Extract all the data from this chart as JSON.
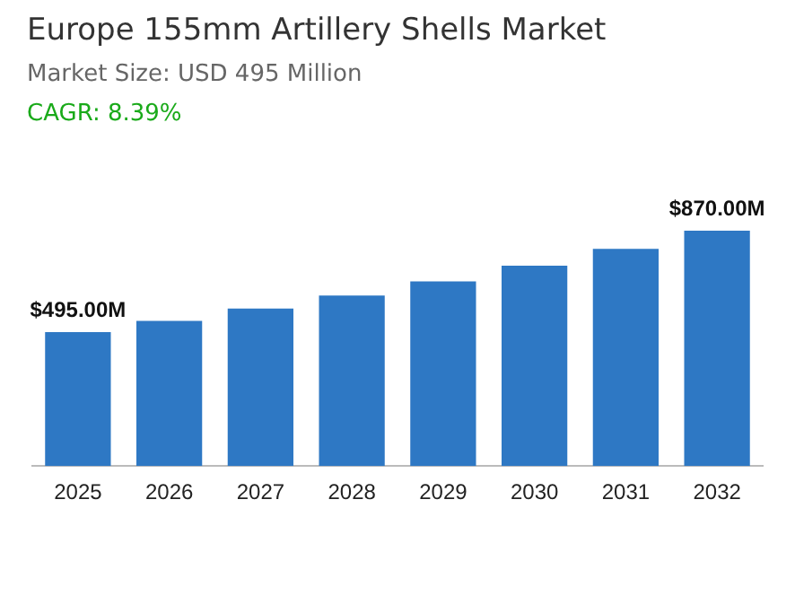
{
  "chart_data": {
    "type": "bar",
    "title": "Europe 155mm Artillery Shells Market",
    "subtitle": "Market Size: USD 495 Million",
    "annotations": [
      "CAGR: 8.39%"
    ],
    "categories": [
      "2025",
      "2026",
      "2027",
      "2028",
      "2029",
      "2030",
      "2031",
      "2032"
    ],
    "values": [
      495,
      537,
      582,
      630,
      683,
      741,
      803,
      870
    ],
    "color": "#2e78c4",
    "value_labels": [
      "$495.00M",
      null,
      null,
      null,
      null,
      null,
      null,
      "$870.00M"
    ],
    "grid": false,
    "legend": false
  }
}
